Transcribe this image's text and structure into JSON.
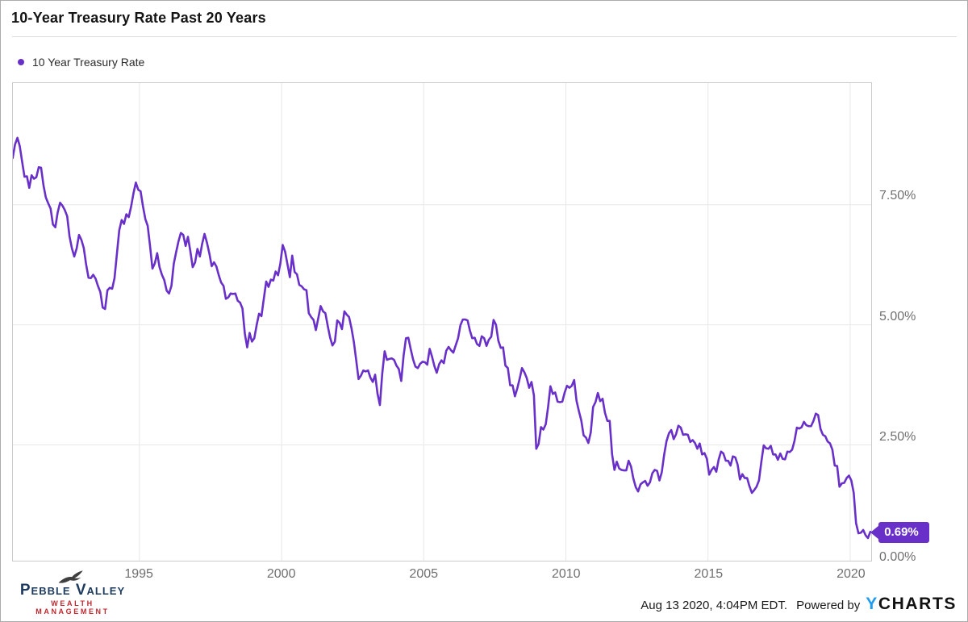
{
  "header": {
    "title": "10-Year Treasury Rate Past 20 Years"
  },
  "legend": {
    "label": "10 Year Treasury Rate"
  },
  "chart_data": {
    "type": "line",
    "title": "10-Year Treasury Rate Past 20 Years",
    "grid": true,
    "legend_position": "top-left",
    "line_color": "#6930c9",
    "x_ticks": [
      1995,
      2000,
      2005,
      2010,
      2015,
      2020
    ],
    "x_tick_labels": [
      "1995",
      "2000",
      "2005",
      "2010",
      "2015",
      "2020"
    ],
    "y_ticks": [
      {
        "value": 7.5,
        "label": "7.50%"
      },
      {
        "value": 5.0,
        "label": "5.00%"
      },
      {
        "value": 2.5,
        "label": "2.50%"
      },
      {
        "value": 0.0,
        "label": "0.00%"
      }
    ],
    "xlim": [
      1990.55,
      2020.74
    ],
    "ylim": [
      0.09,
      10.03
    ],
    "last_label": "0.69%",
    "last_value": 0.69,
    "series": [
      {
        "name": "10 Year Treasury Rate",
        "unit": "%",
        "frequency": "monthly",
        "start_year": 1990,
        "start_month": 6,
        "values": [
          8.48,
          8.47,
          8.75,
          8.89,
          8.72,
          8.39,
          8.08,
          8.09,
          7.85,
          8.11,
          8.04,
          8.07,
          8.28,
          8.27,
          7.9,
          7.65,
          7.53,
          7.42,
          7.09,
          7.03,
          7.34,
          7.54,
          7.48,
          7.39,
          7.26,
          6.84,
          6.59,
          6.42,
          6.59,
          6.87,
          6.77,
          6.6,
          6.26,
          5.98,
          5.97,
          6.04,
          5.96,
          5.81,
          5.68,
          5.36,
          5.33,
          5.72,
          5.77,
          5.75,
          5.97,
          6.48,
          6.97,
          7.18,
          7.1,
          7.3,
          7.24,
          7.46,
          7.74,
          7.96,
          7.81,
          7.78,
          7.47,
          7.2,
          7.06,
          6.63,
          6.17,
          6.28,
          6.49,
          6.2,
          6.04,
          5.93,
          5.71,
          5.65,
          5.81,
          6.27,
          6.51,
          6.74,
          6.91,
          6.87,
          6.64,
          6.83,
          6.53,
          6.2,
          6.3,
          6.58,
          6.42,
          6.69,
          6.89,
          6.71,
          6.49,
          6.22,
          6.3,
          6.21,
          6.03,
          5.88,
          5.81,
          5.54,
          5.57,
          5.65,
          5.64,
          5.65,
          5.5,
          5.46,
          5.34,
          4.81,
          4.53,
          4.83,
          4.65,
          4.72,
          5.0,
          5.23,
          5.18,
          5.54,
          5.9,
          5.79,
          5.94,
          5.92,
          6.11,
          6.03,
          6.28,
          6.66,
          6.52,
          6.26,
          5.99,
          6.44,
          6.1,
          6.05,
          5.83,
          5.8,
          5.74,
          5.72,
          5.24,
          5.16,
          5.1,
          4.89,
          5.14,
          5.39,
          5.28,
          5.24,
          4.97,
          4.73,
          4.57,
          4.65,
          5.09,
          5.04,
          4.91,
          5.28,
          5.21,
          5.16,
          4.93,
          4.65,
          4.26,
          3.87,
          3.94,
          4.05,
          4.03,
          4.05,
          3.9,
          3.81,
          3.96,
          3.57,
          3.33,
          3.98,
          4.45,
          4.27,
          4.29,
          4.3,
          4.27,
          4.15,
          4.08,
          3.83,
          4.35,
          4.72,
          4.73,
          4.5,
          4.28,
          4.13,
          4.1,
          4.19,
          4.23,
          4.22,
          4.17,
          4.5,
          4.34,
          4.14,
          4.0,
          4.18,
          4.26,
          4.2,
          4.46,
          4.54,
          4.47,
          4.42,
          4.57,
          4.72,
          4.99,
          5.11,
          5.11,
          5.09,
          4.88,
          4.72,
          4.73,
          4.6,
          4.56,
          4.76,
          4.72,
          4.56,
          4.69,
          4.75,
          5.1,
          5.0,
          4.67,
          4.52,
          4.53,
          4.15,
          4.1,
          3.74,
          3.74,
          3.51,
          3.68,
          3.88,
          4.1,
          4.01,
          3.89,
          3.69,
          3.81,
          3.53,
          2.42,
          2.52,
          2.87,
          2.82,
          2.93,
          3.29,
          3.72,
          3.56,
          3.59,
          3.4,
          3.39,
          3.4,
          3.59,
          3.73,
          3.69,
          3.73,
          3.85,
          3.42,
          3.2,
          3.01,
          2.7,
          2.65,
          2.54,
          2.76,
          3.29,
          3.39,
          3.58,
          3.41,
          3.46,
          3.17,
          3.0,
          3.0,
          2.3,
          1.98,
          2.15,
          2.01,
          1.98,
          1.97,
          1.97,
          2.17,
          2.05,
          1.8,
          1.62,
          1.53,
          1.68,
          1.72,
          1.75,
          1.65,
          1.72,
          1.91,
          1.98,
          1.96,
          1.76,
          1.93,
          2.3,
          2.58,
          2.74,
          2.81,
          2.62,
          2.72,
          2.9,
          2.86,
          2.71,
          2.72,
          2.71,
          2.56,
          2.6,
          2.54,
          2.42,
          2.53,
          2.3,
          2.33,
          2.21,
          1.88,
          1.98,
          2.04,
          1.94,
          2.2,
          2.36,
          2.32,
          2.17,
          2.17,
          2.07,
          2.26,
          2.24,
          2.09,
          1.78,
          1.89,
          1.81,
          1.81,
          1.64,
          1.5,
          1.56,
          1.63,
          1.76,
          2.14,
          2.49,
          2.43,
          2.42,
          2.48,
          2.3,
          2.3,
          2.19,
          2.32,
          2.21,
          2.2,
          2.36,
          2.35,
          2.4,
          2.58,
          2.86,
          2.84,
          2.87,
          2.98,
          2.91,
          2.89,
          2.89,
          3.0,
          3.15,
          3.12,
          2.83,
          2.71,
          2.68,
          2.57,
          2.53,
          2.4,
          2.07,
          2.06,
          1.63,
          1.7,
          1.71,
          1.81,
          1.86,
          1.76,
          1.5,
          0.87,
          0.66,
          0.67,
          0.73,
          0.62,
          0.56,
          0.69
        ]
      }
    ]
  },
  "footer": {
    "logo": {
      "name": "Pebble Valley",
      "subtitle": "Wealth Management"
    },
    "timestamp": "Aug 13 2020, 4:04PM EDT.",
    "powered_by": "Powered by",
    "ycharts": {
      "y": "Y",
      "charts": "CHARTS"
    }
  },
  "colors": {
    "accent_purple": "#6930c9",
    "ycharts_blue": "#1f9bef",
    "logo_navy": "#1d3a5f",
    "logo_red": "#c1272d"
  }
}
